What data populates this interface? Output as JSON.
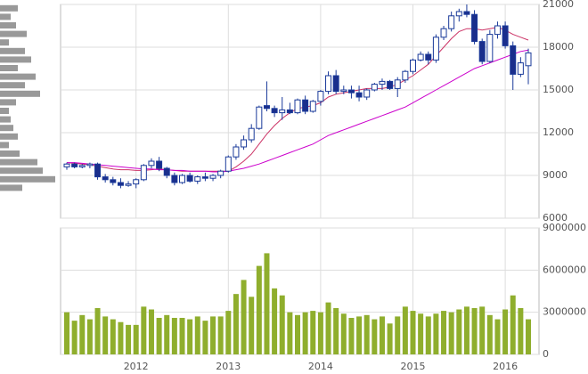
{
  "chart_data": [
    {
      "type": "candlestick",
      "open": [
        9600,
        9800,
        9600,
        9700,
        9800,
        8900,
        8700,
        8500,
        8300,
        8400,
        8700,
        9700,
        10000,
        9500,
        9000,
        8500,
        9000,
        8600,
        8900,
        8800,
        9000,
        9300,
        10300,
        11000,
        11500,
        12300,
        13900,
        13700,
        13400,
        13600,
        13400,
        14300,
        13500,
        14200,
        14900,
        16000,
        14900,
        15000,
        14800,
        14500,
        15000,
        15400,
        15600,
        15100,
        15700,
        16300,
        17100,
        17500,
        17100,
        18700,
        19300,
        20200,
        20500,
        20300,
        18400,
        17000,
        18900,
        19500,
        18100,
        16100,
        16700
      ],
      "high": [
        9900,
        9900,
        9800,
        9900,
        9900,
        9100,
        8900,
        8800,
        8600,
        8800,
        9800,
        10200,
        10300,
        9600,
        9200,
        9100,
        9200,
        9000,
        9200,
        9100,
        9400,
        10400,
        11200,
        11800,
        12600,
        13900,
        15600,
        13900,
        14500,
        14100,
        14400,
        14600,
        14300,
        15000,
        16300,
        16400,
        15300,
        15300,
        15300,
        15100,
        15500,
        15800,
        15700,
        15900,
        16400,
        17200,
        17700,
        17700,
        18900,
        19500,
        20500,
        20700,
        21000,
        20600,
        18600,
        19200,
        19800,
        19800,
        18400,
        17300,
        17900
      ],
      "low": [
        9400,
        9500,
        9500,
        9500,
        8700,
        8500,
        8300,
        8100,
        8200,
        8100,
        8600,
        9500,
        9300,
        8800,
        8300,
        8400,
        8500,
        8400,
        8600,
        8600,
        8800,
        9200,
        10100,
        10800,
        11300,
        12200,
        13500,
        13100,
        12900,
        13300,
        13300,
        13300,
        13400,
        13900,
        14700,
        14700,
        14700,
        14400,
        14200,
        14300,
        14900,
        15000,
        15000,
        14500,
        15500,
        16100,
        17000,
        16800,
        16900,
        18500,
        19100,
        19800,
        20100,
        18200,
        16800,
        16900,
        18600,
        17900,
        15000,
        15900,
        15400
      ],
      "close": [
        9800,
        9600,
        9700,
        9800,
        8900,
        8700,
        8500,
        8300,
        8400,
        8700,
        9700,
        10000,
        9500,
        9000,
        8500,
        9000,
        8600,
        8900,
        8800,
        9000,
        9300,
        10300,
        11000,
        11500,
        12300,
        13800,
        13700,
        13400,
        13600,
        13400,
        14300,
        13500,
        14200,
        14900,
        16000,
        14900,
        15000,
        14800,
        14500,
        15000,
        15400,
        15600,
        15100,
        15700,
        16300,
        17100,
        17500,
        17100,
        18700,
        19300,
        20200,
        20500,
        20300,
        18400,
        17000,
        18900,
        19500,
        18100,
        16100,
        16900,
        17600
      ],
      "up_color": "#ffffff",
      "down_color": "#1a2e8c",
      "outline_color": "#1a3a9a",
      "series": [
        {
          "color": "#cc3366",
          "values": [
            9900,
            9850,
            9800,
            9750,
            9650,
            9550,
            9450,
            9400,
            9400,
            9350,
            9350,
            9400,
            9450,
            9400,
            9350,
            9300,
            9300,
            9300,
            9300,
            9300,
            9300,
            9300,
            9600,
            10000,
            10500,
            11200,
            11900,
            12500,
            13000,
            13400,
            13700,
            13800,
            13900,
            14100,
            14500,
            14700,
            14800,
            14900,
            15000,
            15100,
            15100,
            15100,
            15200,
            15400,
            15700,
            16000,
            16400,
            16800,
            17400,
            18000,
            18600,
            19100,
            19300,
            19300,
            19200,
            19300,
            19400,
            19200,
            18900,
            18700,
            18500
          ]
        },
        {
          "color": "#cc00cc",
          "values": [
            9900,
            9900,
            9850,
            9800,
            9750,
            9700,
            9650,
            9600,
            9550,
            9500,
            9450,
            9450,
            9400,
            9400,
            9350,
            9350,
            9300,
            9300,
            9300,
            9250,
            9250,
            9300,
            9400,
            9500,
            9650,
            9800,
            10000,
            10200,
            10400,
            10600,
            10800,
            11000,
            11200,
            11500,
            11800,
            12000,
            12200,
            12400,
            12600,
            12800,
            13000,
            13200,
            13400,
            13600,
            13800,
            14100,
            14400,
            14700,
            15000,
            15300,
            15600,
            15900,
            16200,
            16500,
            16700,
            16900,
            17100,
            17300,
            17500,
            17700,
            17800
          ]
        }
      ],
      "volume_profile": {
        "color": "#999999",
        "levels": [
          20700,
          20100,
          19500,
          18900,
          18300,
          17700,
          17100,
          16500,
          15900,
          15300,
          14700,
          14100,
          13500,
          12900,
          12300,
          11700,
          11100,
          10500,
          9900,
          9300,
          8700,
          8100
        ],
        "values": [
          20,
          12,
          18,
          30,
          10,
          28,
          35,
          20,
          40,
          28,
          45,
          18,
          10,
          12,
          15,
          20,
          10,
          22,
          42,
          48,
          62,
          25
        ]
      },
      "ylim": [
        6000,
        21000
      ],
      "yticks": [
        6000,
        9000,
        12000,
        15000,
        18000,
        21000
      ],
      "grid": true
    },
    {
      "type": "bar",
      "color": "#8fae2d",
      "categories": [
        null,
        null,
        null,
        null,
        null,
        null,
        null,
        null,
        null,
        "2012",
        null,
        null,
        null,
        null,
        null,
        null,
        null,
        null,
        null,
        null,
        null,
        "2013",
        null,
        null,
        null,
        null,
        null,
        null,
        null,
        null,
        null,
        null,
        null,
        "2014",
        null,
        null,
        null,
        null,
        null,
        null,
        null,
        null,
        null,
        null,
        null,
        "2015",
        null,
        null,
        null,
        null,
        null,
        null,
        null,
        null,
        null,
        null,
        null,
        "2016",
        null,
        null,
        null
      ],
      "values": [
        3000000,
        2400000,
        2800000,
        2500000,
        3300000,
        2700000,
        2500000,
        2300000,
        2100000,
        2100000,
        3400000,
        3200000,
        2600000,
        2800000,
        2600000,
        2600000,
        2500000,
        2700000,
        2400000,
        2700000,
        2700000,
        3100000,
        4300000,
        5300000,
        4100000,
        6300000,
        7200000,
        4700000,
        4200000,
        3000000,
        2800000,
        3000000,
        3100000,
        3000000,
        3700000,
        3300000,
        2900000,
        2600000,
        2700000,
        2800000,
        2500000,
        2700000,
        2200000,
        2700000,
        3400000,
        3100000,
        2900000,
        2700000,
        2900000,
        3100000,
        3000000,
        3200000,
        3400000,
        3300000,
        3400000,
        2800000,
        2500000,
        3200000,
        4200000,
        3300000,
        2500000
      ],
      "ylim": [
        0,
        9000000
      ],
      "yticks": [
        0,
        3000000,
        6000000,
        9000000
      ],
      "grid": true
    }
  ]
}
